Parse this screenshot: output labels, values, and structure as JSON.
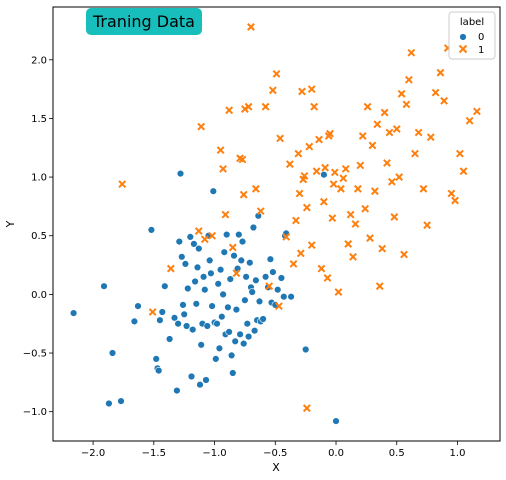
{
  "chart_data": {
    "type": "scatter",
    "title": "Traning Data",
    "xlabel": "X",
    "ylabel": "Y",
    "xlim": [
      -2.33,
      1.35
    ],
    "ylim": [
      -1.25,
      2.45
    ],
    "xticks": [
      -2.0,
      -1.5,
      -1.0,
      -0.5,
      0.0,
      0.5,
      1.0
    ],
    "xtick_labels": [
      "−2.0",
      "−1.5",
      "−1.0",
      "−0.5",
      "0.0",
      "0.5",
      "1.0"
    ],
    "yticks": [
      -1.0,
      -0.5,
      0.0,
      0.5,
      1.0,
      1.5,
      2.0
    ],
    "ytick_labels": [
      "−1.0",
      "−0.5",
      "0.0",
      "0.5",
      "1.0",
      "1.5",
      "2.0"
    ],
    "grid": false,
    "legend": {
      "title": "label",
      "placement": "top-right"
    },
    "title_box_color": "#17BEBB",
    "series": [
      {
        "name": "0",
        "marker": "circle",
        "color": "#1f77b4",
        "points": [
          [
            -2.16,
            -0.16
          ],
          [
            -1.91,
            0.07
          ],
          [
            -1.84,
            -0.5
          ],
          [
            -1.87,
            -0.93
          ],
          [
            -1.77,
            -0.91
          ],
          [
            -1.66,
            -0.23
          ],
          [
            -1.63,
            -0.1
          ],
          [
            -1.52,
            0.55
          ],
          [
            -1.48,
            -0.55
          ],
          [
            -1.47,
            -0.63
          ],
          [
            -1.46,
            -0.65
          ],
          [
            -1.45,
            -0.22
          ],
          [
            -1.43,
            -0.15
          ],
          [
            -1.41,
            0.07
          ],
          [
            -1.37,
            -0.38
          ],
          [
            -1.33,
            -0.2
          ],
          [
            -1.31,
            -0.82
          ],
          [
            -1.3,
            -0.25
          ],
          [
            -1.29,
            0.45
          ],
          [
            -1.28,
            1.03
          ],
          [
            -1.27,
            0.32
          ],
          [
            -1.26,
            -0.09
          ],
          [
            -1.25,
            -0.17
          ],
          [
            -1.24,
            0.26
          ],
          [
            -1.23,
            -0.27
          ],
          [
            -1.22,
            0.05
          ],
          [
            -1.2,
            0.49
          ],
          [
            -1.19,
            -0.7
          ],
          [
            -1.18,
            -0.3
          ],
          [
            -1.17,
            0.43
          ],
          [
            -1.16,
            0.11
          ],
          [
            -1.15,
            -0.08
          ],
          [
            -1.14,
            0.23
          ],
          [
            -1.13,
            0.39
          ],
          [
            -1.12,
            -0.77
          ],
          [
            -1.11,
            -0.43
          ],
          [
            -1.1,
            -0.25
          ],
          [
            -1.09,
            0.15
          ],
          [
            -1.08,
            0.04
          ],
          [
            -1.07,
            -0.73
          ],
          [
            -1.06,
            -0.27
          ],
          [
            -1.05,
            0.5
          ],
          [
            -1.04,
            0.29
          ],
          [
            -1.03,
            0.18
          ],
          [
            -1.02,
            -0.1
          ],
          [
            -1.01,
            0.88
          ],
          [
            -1.0,
            -0.24
          ],
          [
            -0.99,
            -0.55
          ],
          [
            -0.98,
            -0.25
          ],
          [
            -0.97,
            0.09
          ],
          [
            -0.96,
            -0.46
          ],
          [
            -0.95,
            0.21
          ],
          [
            -0.94,
            -0.19
          ],
          [
            -0.93,
            0.0
          ],
          [
            -0.92,
            0.36
          ],
          [
            -0.91,
            -0.34
          ],
          [
            -0.9,
            0.51
          ],
          [
            -0.89,
            -0.11
          ],
          [
            -0.88,
            -0.32
          ],
          [
            -0.87,
            0.13
          ],
          [
            -0.86,
            -0.52
          ],
          [
            -0.85,
            -0.67
          ],
          [
            -0.84,
            0.33
          ],
          [
            -0.83,
            -0.4
          ],
          [
            -0.82,
            -0.13
          ],
          [
            -0.81,
            0.22
          ],
          [
            -0.8,
            0.51
          ],
          [
            -0.79,
            -0.34
          ],
          [
            -0.78,
            0.29
          ],
          [
            -0.77,
            0.45
          ],
          [
            -0.76,
            -0.42
          ],
          [
            -0.75,
            -0.05
          ],
          [
            -0.74,
            0.15
          ],
          [
            -0.73,
            -0.25
          ],
          [
            -0.72,
            -0.36
          ],
          [
            -0.71,
            0.27
          ],
          [
            -0.7,
            0.06
          ],
          [
            -0.69,
            0.02
          ],
          [
            -0.68,
            0.57
          ],
          [
            -0.67,
            -0.31
          ],
          [
            -0.66,
            0.12
          ],
          [
            -0.65,
            -0.22
          ],
          [
            -0.64,
            0.67
          ],
          [
            -0.63,
            -0.06
          ],
          [
            -0.62,
            -0.23
          ],
          [
            -0.6,
            -0.21
          ],
          [
            -0.58,
            0.15
          ],
          [
            -0.56,
            0.06
          ],
          [
            -0.54,
            0.3
          ],
          [
            -0.53,
            -0.07
          ],
          [
            -0.52,
            0.19
          ],
          [
            -0.5,
            -0.09
          ],
          [
            -0.48,
            0.04
          ],
          [
            -0.45,
            0.14
          ],
          [
            -0.43,
            -0.02
          ],
          [
            -0.42,
            0.5
          ],
          [
            -0.41,
            0.52
          ],
          [
            -0.37,
            -0.02
          ],
          [
            -0.25,
            -0.47
          ],
          [
            -0.1,
            1.02
          ],
          [
            0.0,
            -1.08
          ]
        ]
      },
      {
        "name": "1",
        "marker": "x",
        "color": "#ff7f0e",
        "points": [
          [
            -1.76,
            0.94
          ],
          [
            -1.51,
            -0.15
          ],
          [
            -1.36,
            0.22
          ],
          [
            -1.13,
            0.54
          ],
          [
            -1.11,
            1.43
          ],
          [
            -1.08,
            0.47
          ],
          [
            -1.02,
            0.5
          ],
          [
            -0.95,
            1.23
          ],
          [
            -0.93,
            1.07
          ],
          [
            -0.91,
            0.68
          ],
          [
            -0.88,
            1.57
          ],
          [
            -0.85,
            0.4
          ],
          [
            -0.82,
            0.18
          ],
          [
            -0.79,
            1.16
          ],
          [
            -0.77,
            1.15
          ],
          [
            -0.76,
            0.85
          ],
          [
            -0.75,
            1.58
          ],
          [
            -0.72,
            1.6
          ],
          [
            -0.7,
            2.28
          ],
          [
            -0.66,
            0.9
          ],
          [
            -0.62,
            0.71
          ],
          [
            -0.58,
            1.6
          ],
          [
            -0.55,
            0.07
          ],
          [
            -0.52,
            1.74
          ],
          [
            -0.49,
            1.88
          ],
          [
            -0.47,
            -0.1
          ],
          [
            -0.46,
            1.33
          ],
          [
            -0.41,
            0.49
          ],
          [
            -0.38,
            1.11
          ],
          [
            -0.35,
            0.26
          ],
          [
            -0.33,
            0.63
          ],
          [
            -0.31,
            1.2
          ],
          [
            -0.3,
            0.86
          ],
          [
            -0.29,
            0.35
          ],
          [
            -0.28,
            1.73
          ],
          [
            -0.27,
            0.98
          ],
          [
            -0.26,
            1.01
          ],
          [
            -0.24,
            0.74
          ],
          [
            -0.24,
            -0.97
          ],
          [
            -0.22,
            1.26
          ],
          [
            -0.2,
            0.42
          ],
          [
            -0.2,
            1.75
          ],
          [
            -0.18,
            1.6
          ],
          [
            -0.16,
            1.05
          ],
          [
            -0.14,
            1.32
          ],
          [
            -0.12,
            0.22
          ],
          [
            -0.1,
            0.79
          ],
          [
            -0.09,
            1.08
          ],
          [
            -0.07,
            0.14
          ],
          [
            -0.06,
            1.35
          ],
          [
            -0.05,
            1.37
          ],
          [
            -0.03,
            0.65
          ],
          [
            -0.02,
            0.94
          ],
          [
            -0.01,
            1.04
          ],
          [
            0.02,
            0.02
          ],
          [
            0.04,
            0.9
          ],
          [
            0.06,
            0.99
          ],
          [
            0.08,
            1.07
          ],
          [
            0.1,
            0.43
          ],
          [
            0.12,
            0.68
          ],
          [
            0.14,
            0.32
          ],
          [
            0.16,
            0.6
          ],
          [
            0.18,
            0.9
          ],
          [
            0.2,
            1.1
          ],
          [
            0.22,
            1.35
          ],
          [
            0.24,
            0.73
          ],
          [
            0.26,
            1.6
          ],
          [
            0.28,
            0.48
          ],
          [
            0.3,
            1.27
          ],
          [
            0.32,
            0.88
          ],
          [
            0.34,
            1.45
          ],
          [
            0.36,
            0.07
          ],
          [
            0.38,
            0.39
          ],
          [
            0.4,
            1.55
          ],
          [
            0.42,
            1.12
          ],
          [
            0.44,
            1.38
          ],
          [
            0.46,
            0.96
          ],
          [
            0.48,
            0.66
          ],
          [
            0.5,
            1.41
          ],
          [
            0.52,
            1.0
          ],
          [
            0.54,
            1.71
          ],
          [
            0.56,
            0.34
          ],
          [
            0.58,
            1.62
          ],
          [
            0.6,
            1.83
          ],
          [
            0.62,
            2.06
          ],
          [
            0.65,
            1.2
          ],
          [
            0.68,
            1.38
          ],
          [
            0.72,
            0.9
          ],
          [
            0.75,
            0.59
          ],
          [
            0.78,
            1.34
          ],
          [
            0.82,
            1.72
          ],
          [
            0.86,
            1.89
          ],
          [
            0.89,
            1.65
          ],
          [
            0.92,
            2.1
          ],
          [
            0.95,
            0.86
          ],
          [
            0.98,
            0.8
          ],
          [
            1.02,
            1.2
          ],
          [
            1.05,
            1.05
          ],
          [
            1.1,
            1.48
          ],
          [
            1.16,
            1.56
          ]
        ]
      }
    ]
  }
}
